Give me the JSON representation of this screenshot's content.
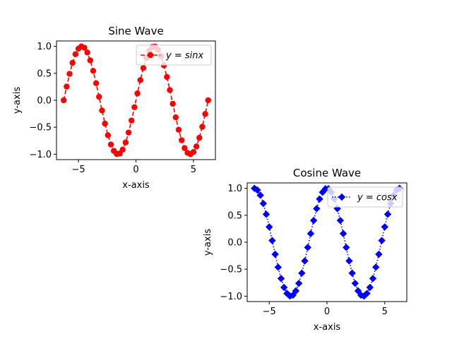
{
  "chart_data": [
    {
      "type": "line",
      "title": "Sine Wave",
      "xlabel": "x-axis",
      "ylabel": "y-axis",
      "xlim": [
        -6.91,
        6.91
      ],
      "ylim": [
        -1.1,
        1.1
      ],
      "xticks": [
        -5,
        0,
        5
      ],
      "xtick_labels": [
        "−5",
        "0",
        "5"
      ],
      "yticks": [
        -1.0,
        -0.5,
        0.0,
        0.5,
        1.0
      ],
      "ytick_labels": [
        "−1.0",
        "−0.5",
        "0.0",
        "0.5",
        "1.0"
      ],
      "grid": false,
      "legend_position": "upper-right",
      "series": [
        {
          "name": "y = sinx",
          "legend_italic_parts": [
            "y",
            "=",
            "sinx"
          ],
          "color": "#ff0000",
          "linestyle": "dashed",
          "marker": "circle",
          "x": [
            -6.2832,
            -6.0268,
            -5.7703,
            -5.5139,
            -5.2574,
            -5.0009,
            -4.7445,
            -4.488,
            -4.2316,
            -3.9751,
            -3.7187,
            -3.4622,
            -3.2057,
            -2.9493,
            -2.6928,
            -2.4364,
            -2.1799,
            -1.9234,
            -1.667,
            -1.4105,
            -1.1541,
            -0.8976,
            -0.6411,
            -0.3847,
            -0.1282,
            0.1282,
            0.3847,
            0.6411,
            0.8976,
            1.1541,
            1.4105,
            1.667,
            1.9234,
            2.1799,
            2.4364,
            2.6928,
            2.9493,
            3.2057,
            3.4622,
            3.7187,
            3.9751,
            4.2316,
            4.488,
            4.7445,
            5.0009,
            5.2574,
            5.5139,
            5.7703,
            6.0268,
            6.2832
          ],
          "y": [
            0.0,
            0.2537,
            0.4907,
            0.6956,
            0.8551,
            0.9587,
            0.9995,
            0.9749,
            0.8865,
            0.7403,
            0.546,
            0.3166,
            0.0641,
            -0.1893,
            -0.4325,
            -0.647,
            -0.8199,
            -0.938,
            -0.9954,
            -0.9871,
            -0.9151,
            -0.7818,
            -0.5979,
            -0.3752,
            -0.1279,
            0.1279,
            0.3752,
            0.5979,
            0.7818,
            0.9151,
            0.9871,
            0.9954,
            0.938,
            0.8199,
            0.647,
            0.4325,
            0.1893,
            -0.0641,
            -0.3166,
            -0.546,
            -0.7403,
            -0.8865,
            -0.9749,
            -0.9995,
            -0.9587,
            -0.8551,
            -0.6956,
            -0.4907,
            -0.2537,
            0.0
          ]
        }
      ]
    },
    {
      "type": "line",
      "title": "Cosine Wave",
      "xlabel": "x-axis",
      "ylabel": "y-axis",
      "xlim": [
        -6.91,
        6.91
      ],
      "ylim": [
        -1.1,
        1.1
      ],
      "xticks": [
        -5,
        0,
        5
      ],
      "xtick_labels": [
        "−5",
        "0",
        "5"
      ],
      "yticks": [
        -1.0,
        -0.5,
        0.0,
        0.5,
        1.0
      ],
      "ytick_labels": [
        "−1.0",
        "−0.5",
        "0.0",
        "0.5",
        "1.0"
      ],
      "grid": false,
      "legend_position": "upper-right",
      "series": [
        {
          "name": "y = cosx",
          "legend_italic_parts": [
            "y",
            "=",
            "cosx"
          ],
          "color": "#0000ff",
          "linestyle": "dotted",
          "marker": "diamond",
          "x": [
            -6.2832,
            -6.0268,
            -5.7703,
            -5.5139,
            -5.2574,
            -5.0009,
            -4.7445,
            -4.488,
            -4.2316,
            -3.9751,
            -3.7187,
            -3.4622,
            -3.2057,
            -2.9493,
            -2.6928,
            -2.4364,
            -2.1799,
            -1.9234,
            -1.667,
            -1.4105,
            -1.1541,
            -0.8976,
            -0.6411,
            -0.3847,
            -0.1282,
            0.1282,
            0.3847,
            0.6411,
            0.8976,
            1.1541,
            1.4105,
            1.667,
            1.9234,
            2.1799,
            2.4364,
            2.6928,
            2.9493,
            3.2057,
            3.4622,
            3.7187,
            3.9751,
            4.2316,
            4.488,
            4.7445,
            5.0009,
            5.2574,
            5.5139,
            5.7703,
            6.0268,
            6.2832
          ],
          "y": [
            1.0,
            0.9673,
            0.8713,
            0.7183,
            0.5184,
            0.2845,
            0.0321,
            -0.2225,
            -0.4625,
            -0.6725,
            -0.838,
            -0.9486,
            -0.9979,
            -0.9819,
            -0.9017,
            -0.7623,
            -0.5725,
            -0.3466,
            -0.0962,
            0.1603,
            0.404,
            0.6235,
            0.8014,
            0.9269,
            0.9918,
            0.9918,
            0.9269,
            0.8014,
            0.6235,
            0.404,
            0.1603,
            -0.0962,
            -0.3466,
            -0.5725,
            -0.7623,
            -0.9017,
            -0.9819,
            -0.9979,
            -0.9486,
            -0.838,
            -0.6725,
            -0.4625,
            -0.2225,
            0.0321,
            0.2845,
            0.5184,
            0.7183,
            0.8713,
            0.9673,
            1.0
          ]
        }
      ]
    }
  ]
}
